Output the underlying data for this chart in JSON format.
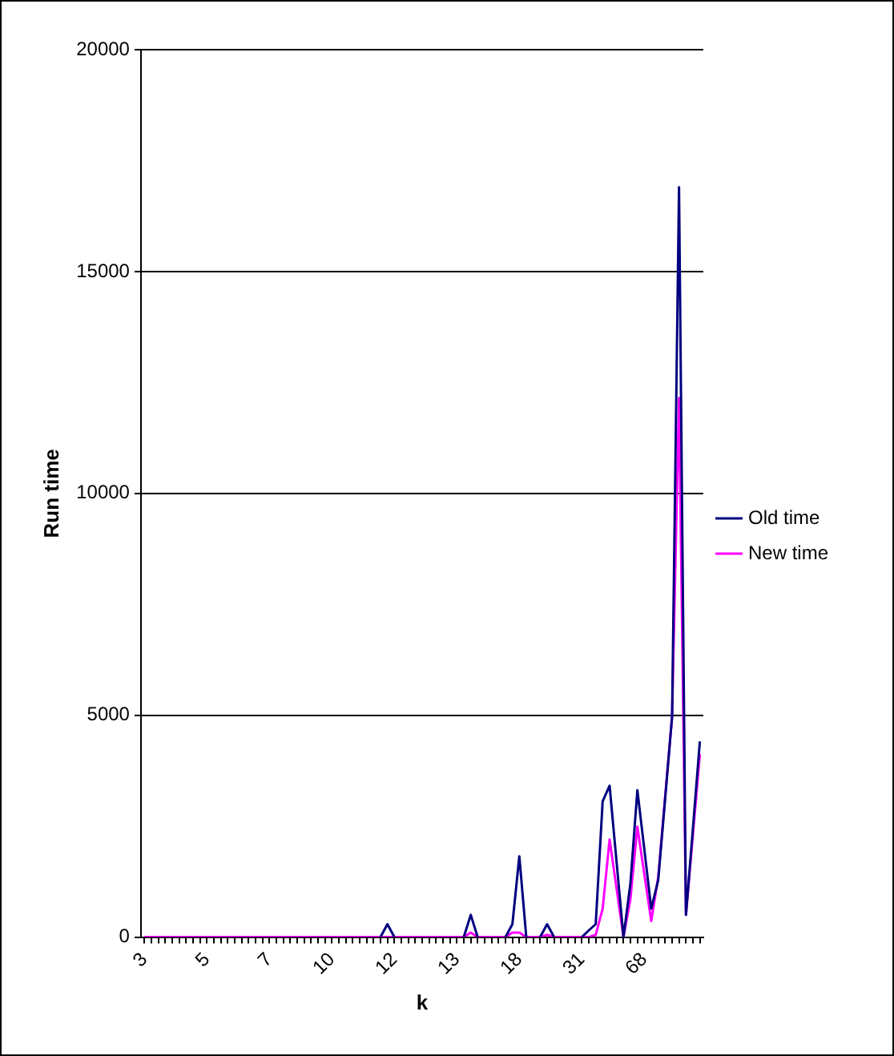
{
  "chart_data": {
    "type": "line",
    "xlabel": "k",
    "ylabel": "Run time",
    "categories": [
      "3",
      null,
      null,
      null,
      null,
      null,
      null,
      null,
      null,
      "5",
      null,
      null,
      null,
      null,
      null,
      null,
      null,
      null,
      "7",
      null,
      null,
      null,
      null,
      null,
      null,
      null,
      null,
      "10",
      null,
      null,
      null,
      null,
      null,
      null,
      null,
      null,
      "12",
      null,
      null,
      null,
      null,
      null,
      null,
      null,
      null,
      "13",
      null,
      null,
      null,
      null,
      null,
      null,
      null,
      null,
      "18",
      null,
      null,
      null,
      null,
      null,
      null,
      null,
      null,
      "31",
      null,
      null,
      null,
      null,
      null,
      null,
      null,
      null,
      "68",
      null,
      null,
      null,
      null,
      null,
      null,
      null,
      null
    ],
    "series": [
      {
        "name": "Old time",
        "color": "#000080",
        "values": [
          null,
          null,
          null,
          null,
          null,
          null,
          null,
          null,
          null,
          null,
          null,
          null,
          null,
          null,
          null,
          null,
          null,
          null,
          null,
          null,
          null,
          null,
          null,
          null,
          null,
          null,
          null,
          null,
          null,
          null,
          null,
          null,
          null,
          null,
          0,
          290,
          0,
          null,
          null,
          null,
          null,
          null,
          null,
          null,
          null,
          null,
          0,
          500,
          0,
          null,
          null,
          null,
          0,
          290,
          1820,
          0,
          null,
          0,
          290,
          0,
          null,
          null,
          null,
          0,
          150,
          290,
          3060,
          3410,
          1700,
          0,
          1210,
          3310,
          1980,
          640,
          1280,
          3120,
          4970,
          16900,
          500,
          2450,
          4410
        ]
      },
      {
        "name": "New time",
        "color": "#ff00ff",
        "values": [
          0,
          0,
          0,
          0,
          0,
          0,
          0,
          0,
          0,
          0,
          0,
          0,
          0,
          0,
          0,
          0,
          0,
          0,
          0,
          0,
          0,
          0,
          0,
          0,
          0,
          0,
          0,
          0,
          0,
          0,
          0,
          0,
          0,
          0,
          0,
          0,
          0,
          0,
          0,
          0,
          0,
          0,
          0,
          0,
          0,
          0,
          0,
          100,
          0,
          0,
          0,
          0,
          0,
          100,
          100,
          0,
          0,
          0,
          50,
          0,
          0,
          0,
          0,
          0,
          0,
          50,
          640,
          2200,
          1100,
          0,
          860,
          2490,
          1420,
          360,
          1350,
          3160,
          4970,
          12150,
          500,
          2310,
          4120
        ]
      }
    ],
    "ylim": [
      0,
      20000
    ],
    "yticks": [
      0,
      5000,
      10000,
      15000,
      20000
    ],
    "grid": "y",
    "legend": "right",
    "marker": "none",
    "line_style": "solid"
  }
}
